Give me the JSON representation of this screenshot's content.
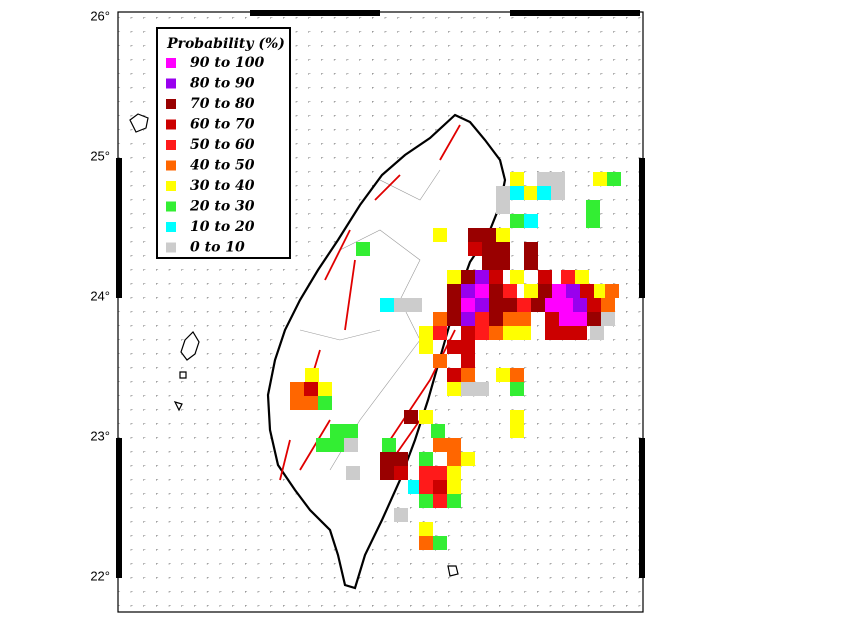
{
  "map": {
    "lat_labels": [
      "26°",
      "25°",
      "24°",
      "23°",
      "22°"
    ],
    "legend": {
      "title": "Probability (%)",
      "items": [
        {
          "label": "90 to 100",
          "color": "#ff00ff"
        },
        {
          "label": "80 to  90",
          "color": "#9900ee"
        },
        {
          "label": "70 to  80",
          "color": "#990000"
        },
        {
          "label": "60 to  70",
          "color": "#cc0000"
        },
        {
          "label": "50 to  60",
          "color": "#ff1a1a"
        },
        {
          "label": "40 to  50",
          "color": "#ff6600"
        },
        {
          "label": "30 to  40",
          "color": "#ffff00"
        },
        {
          "label": "20 to  30",
          "color": "#33ee33"
        },
        {
          "label": "10 to  20",
          "color": "#00ffff"
        },
        {
          "label": " 0 to  10",
          "color": "#cccccc"
        }
      ]
    }
  }
}
